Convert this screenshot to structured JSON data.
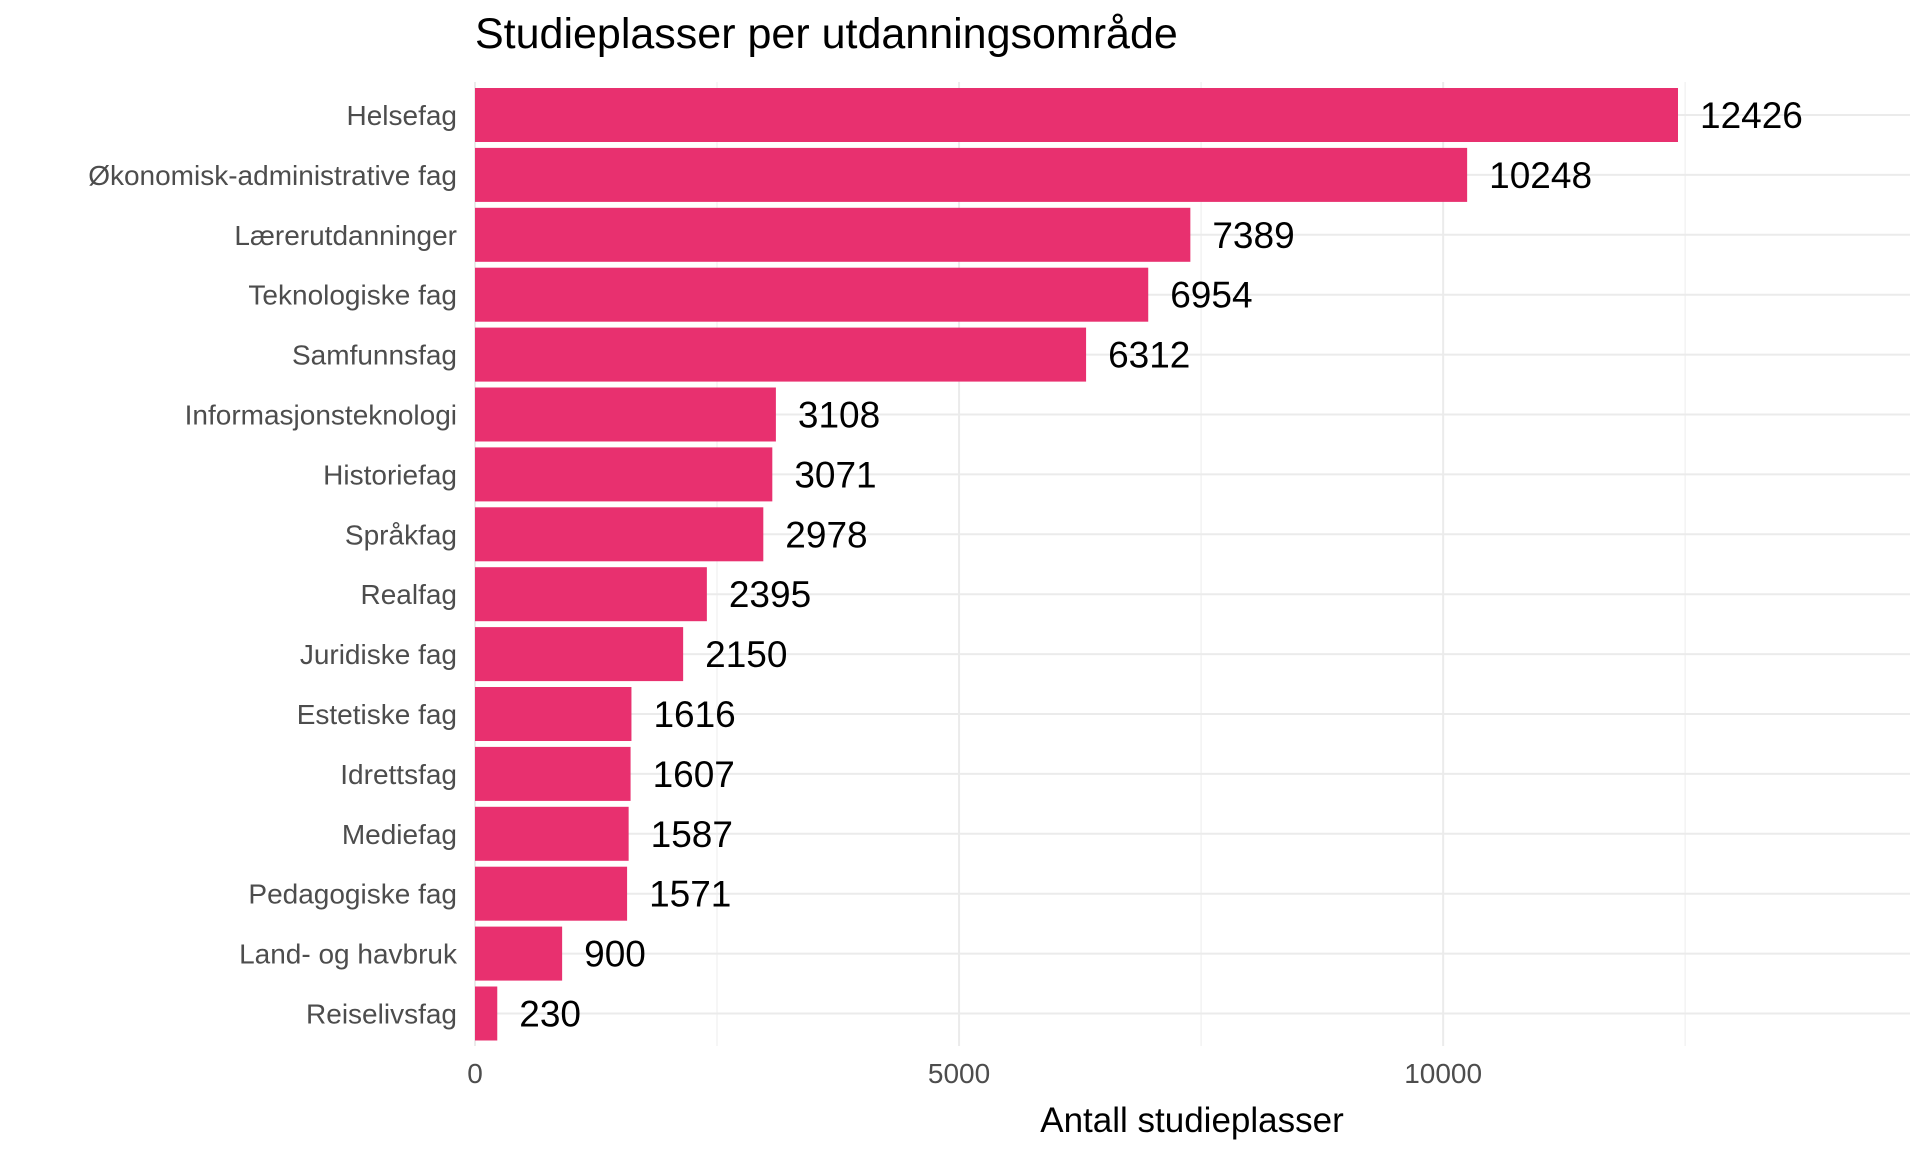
{
  "chart_data": {
    "type": "bar",
    "orientation": "horizontal",
    "title": "Studieplasser per utdanningsområde",
    "xlabel": "Antall studieplasser",
    "ylabel": "",
    "categories": [
      "Helsefag",
      "Økonomisk-administrative fag",
      "Lærerutdanninger",
      "Teknologiske fag",
      "Samfunnsfag",
      "Informasjonsteknologi",
      "Historiefag",
      "Språkfag",
      "Realfag",
      "Juridiske fag",
      "Estetiske fag",
      "Idrettsfag",
      "Mediefag",
      "Pedagogiske fag",
      "Land- og havbruk",
      "Reiselivsfag"
    ],
    "values": [
      12426,
      10248,
      7389,
      6954,
      6312,
      3108,
      3071,
      2978,
      2395,
      2150,
      1616,
      1607,
      1587,
      1571,
      900,
      230
    ],
    "value_labels": [
      "12426",
      "10248",
      "7389",
      "6954",
      "6312",
      "3108",
      "3071",
      "2978",
      "2395",
      "2150",
      "1616",
      "1607",
      "1587",
      "1571",
      "900",
      "230"
    ],
    "xlim": [
      0,
      14800
    ],
    "xticks": [
      0,
      5000,
      10000
    ],
    "xtick_labels": [
      "0",
      "5000",
      "10000"
    ],
    "grid": true,
    "legend": "none",
    "bar_color": "#e8306f",
    "grid_color": "#ebebeb",
    "text_color": "#000000",
    "axis_text_color": "#4d4d4d"
  }
}
